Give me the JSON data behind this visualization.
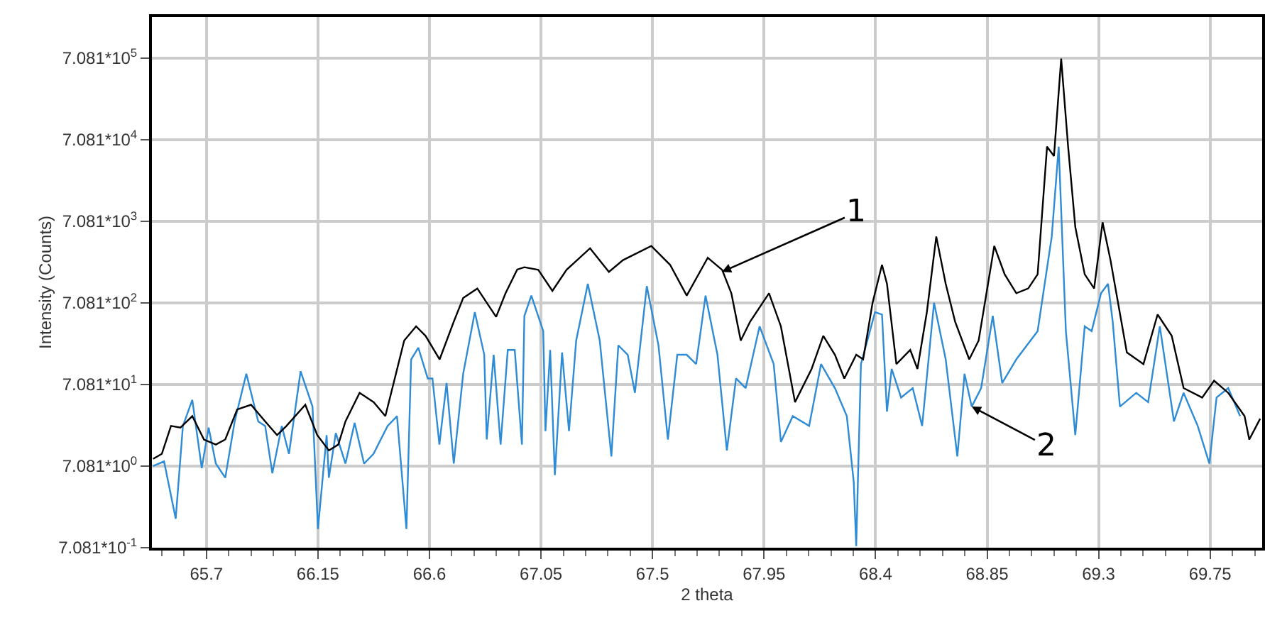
{
  "chart_data": {
    "type": "line",
    "xlabel": "2 theta",
    "ylabel": "Intensity (Counts)",
    "log": "y",
    "grid": true,
    "xlim": [
      65.48,
      69.96
    ],
    "xticks": [
      65.7,
      66.15,
      66.6,
      67.05,
      67.5,
      67.95,
      68.4,
      68.85,
      69.3,
      69.75
    ],
    "ylim": [
      0.7081,
      2260000
    ],
    "yticks": [
      {
        "value": 0.7081,
        "label": "7.081*10$^{-1}$"
      },
      {
        "value": 7.081,
        "label": "7.081*10$^{0}$"
      },
      {
        "value": 70.81,
        "label": "7.081*10$^{1}$"
      },
      {
        "value": 708.1,
        "label": "7.081*10$^{2}$"
      },
      {
        "value": 7081,
        "label": "7.081*10$^{3}$"
      },
      {
        "value": 70810,
        "label": "7.081*10$^{4}$"
      },
      {
        "value": 708100,
        "label": "7.081*10$^{5}$"
      }
    ],
    "annotations": [
      {
        "text": "1",
        "x": 67.78,
        "y": 1700
      },
      {
        "text": "2",
        "x": 68.788,
        "y": 38
      }
    ],
    "series": [
      {
        "color": "#2e8bd6",
        "x": [
          65.485,
          65.529,
          65.576,
          65.605,
          65.643,
          65.681,
          65.709,
          65.738,
          65.776,
          65.814,
          65.861,
          65.909,
          65.937,
          65.966,
          66.004,
          66.033,
          66.08,
          66.128,
          66.15,
          66.185,
          66.194,
          66.222,
          66.261,
          66.298,
          66.336,
          66.374,
          66.431,
          66.469,
          66.507,
          66.526,
          66.555,
          66.593,
          66.612,
          66.64,
          66.669,
          66.698,
          66.736,
          66.783,
          66.821,
          66.831,
          66.859,
          66.887,
          66.916,
          66.944,
          66.973,
          66.983,
          67.011,
          67.059,
          67.068,
          67.087,
          67.106,
          67.135,
          67.163,
          67.192,
          67.239,
          67.287,
          67.334,
          67.362,
          67.4,
          67.429,
          67.477,
          67.524,
          67.562,
          67.6,
          67.638,
          67.676,
          67.714,
          67.762,
          67.8,
          67.837,
          67.876,
          67.932,
          67.989,
          68.018,
          68.066,
          68.132,
          68.18,
          68.236,
          68.284,
          68.312,
          68.322,
          68.341,
          68.398,
          68.426,
          68.446,
          68.465,
          68.503,
          68.55,
          68.588,
          68.636,
          68.683,
          68.73,
          68.759,
          68.788,
          68.826,
          68.873,
          68.911,
          68.968,
          69.054,
          69.111,
          69.139,
          69.168,
          69.206,
          69.244,
          69.272,
          69.31,
          69.338,
          69.357,
          69.386,
          69.452,
          69.5,
          69.547,
          69.604,
          69.643,
          69.7,
          69.747,
          69.776,
          69.823,
          69.871
        ],
        "values": [
          7.1,
          8.1,
          1.6,
          22,
          46,
          6.7,
          21,
          7.6,
          5.1,
          25,
          96,
          25,
          22,
          5.8,
          22,
          10,
          103,
          38,
          1.2,
          17,
          5.1,
          18,
          7.6,
          24,
          7.6,
          10,
          22,
          29,
          1.2,
          144,
          200,
          84,
          84,
          13,
          74,
          7.6,
          96,
          546,
          164,
          15,
          164,
          13,
          188,
          188,
          13,
          491,
          871,
          320,
          19,
          188,
          5.5,
          175,
          19,
          245,
          1216,
          245,
          9.3,
          214,
          164,
          56,
          1138,
          214,
          15,
          164,
          164,
          126,
          871,
          164,
          11,
          84,
          64,
          366,
          126,
          14,
          29,
          22,
          126,
          64,
          29,
          4.5,
          0.74,
          126,
          546,
          511,
          33,
          110,
          49,
          64,
          22,
          713,
          144,
          9.3,
          96,
          38,
          64,
          491,
          74,
          144,
          320,
          4613,
          58300,
          320,
          17,
          366,
          320,
          931,
          1216,
          418,
          38,
          56,
          43,
          366,
          25,
          56,
          22,
          7.6,
          49,
          64,
          29
        ]
      },
      {
        "color": "#000000",
        "x": [
          65.485,
          65.52,
          65.557,
          65.595,
          65.643,
          65.69,
          65.738,
          65.776,
          65.824,
          65.88,
          65.937,
          65.985,
          66.023,
          66.099,
          66.147,
          66.194,
          66.232,
          66.261,
          66.318,
          66.375,
          66.422,
          66.46,
          66.498,
          66.546,
          66.584,
          66.641,
          66.698,
          66.736,
          66.793,
          66.831,
          66.869,
          66.907,
          66.954,
          66.983,
          67.039,
          67.096,
          67.153,
          67.248,
          67.324,
          67.381,
          67.495,
          67.571,
          67.638,
          67.723,
          67.781,
          67.818,
          67.856,
          67.894,
          67.97,
          68.018,
          68.075,
          68.142,
          68.189,
          68.236,
          68.274,
          68.322,
          68.35,
          68.388,
          68.426,
          68.446,
          68.484,
          68.54,
          68.569,
          68.607,
          68.645,
          68.683,
          68.721,
          68.778,
          68.816,
          68.879,
          68.921,
          68.968,
          69.016,
          69.054,
          69.092,
          69.12,
          69.149,
          69.177,
          69.206,
          69.244,
          69.282,
          69.316,
          69.348,
          69.414,
          69.481,
          69.538,
          69.595,
          69.643,
          69.718,
          69.766,
          69.823,
          69.889,
          69.908,
          69.952
        ],
        "values": [
          8.7,
          10,
          22,
          21,
          29,
          15,
          13,
          15,
          35,
          40,
          25,
          17,
          22,
          40,
          17,
          11,
          13,
          25,
          56,
          43,
          29,
          84,
          245,
          366,
          280,
          144,
          418,
          815,
          1064,
          713,
          478,
          931,
          1815,
          1941,
          1800,
          995,
          1800,
          3311,
          1700,
          2371,
          3540,
          2075,
          871,
          2535,
          1800,
          931,
          245,
          418,
          931,
          366,
          43,
          110,
          280,
          164,
          84,
          164,
          144,
          713,
          2075,
          1216,
          126,
          188,
          110,
          546,
          4613,
          1216,
          418,
          144,
          245,
          3540,
          1589,
          931,
          1064,
          1589,
          58300,
          44700,
          700000,
          58300,
          6026,
          1589,
          1064,
          6887,
          2371,
          175,
          126,
          511,
          280,
          64,
          49,
          79,
          56,
          29,
          15,
          27
        ]
      }
    ]
  }
}
